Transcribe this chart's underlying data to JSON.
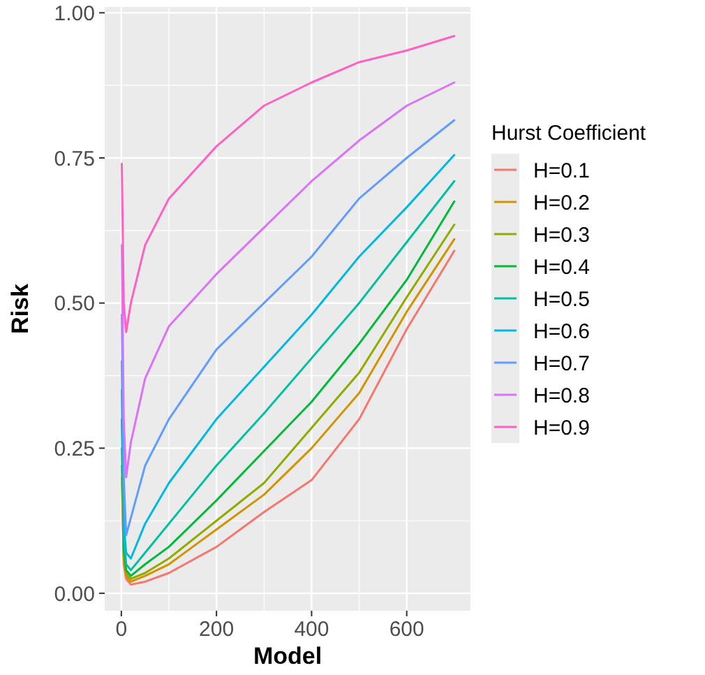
{
  "chart_data": {
    "type": "line",
    "xlabel": "Model",
    "ylabel": "Risk",
    "legend_title": "Hurst Coefficient",
    "legend": "right",
    "grid": true,
    "xlim": [
      -35,
      734
    ],
    "ylim": [
      -0.03,
      1.01
    ],
    "xticks": [
      0,
      200,
      400,
      600
    ],
    "yticks": [
      {
        "value": 0,
        "label": "0.00"
      },
      {
        "value": 0.25,
        "label": "0.25"
      },
      {
        "value": 0.5,
        "label": "0.50"
      },
      {
        "value": 0.75,
        "label": "0.75"
      },
      {
        "value": 1,
        "label": "1.00"
      }
    ],
    "x": [
      1,
      5,
      10,
      20,
      50,
      100,
      200,
      300,
      400,
      500,
      600,
      700
    ],
    "series": [
      {
        "name": "H=0.1",
        "color": "#f8766d",
        "values": [
          0.2,
          0.05,
          0.025,
          0.015,
          0.02,
          0.035,
          0.08,
          0.14,
          0.195,
          0.3,
          0.455,
          0.59
        ]
      },
      {
        "name": "H=0.2",
        "color": "#d39200",
        "values": [
          0.22,
          0.06,
          0.03,
          0.02,
          0.03,
          0.05,
          0.11,
          0.17,
          0.25,
          0.345,
          0.485,
          0.61
        ]
      },
      {
        "name": "H=0.3",
        "color": "#93aa00",
        "values": [
          0.25,
          0.07,
          0.035,
          0.025,
          0.035,
          0.06,
          0.125,
          0.19,
          0.285,
          0.38,
          0.51,
          0.635
        ]
      },
      {
        "name": "H=0.4",
        "color": "#00ba38",
        "values": [
          0.3,
          0.08,
          0.04,
          0.03,
          0.05,
          0.08,
          0.16,
          0.245,
          0.33,
          0.43,
          0.54,
          0.675
        ]
      },
      {
        "name": "H=0.5",
        "color": "#00c19f",
        "values": [
          0.35,
          0.1,
          0.05,
          0.04,
          0.07,
          0.12,
          0.22,
          0.31,
          0.405,
          0.5,
          0.605,
          0.71
        ]
      },
      {
        "name": "H=0.6",
        "color": "#00b9e3",
        "values": [
          0.4,
          0.12,
          0.07,
          0.06,
          0.12,
          0.19,
          0.3,
          0.39,
          0.48,
          0.58,
          0.665,
          0.755
        ]
      },
      {
        "name": "H=0.7",
        "color": "#619cff",
        "values": [
          0.48,
          0.2,
          0.1,
          0.13,
          0.22,
          0.3,
          0.42,
          0.5,
          0.58,
          0.68,
          0.75,
          0.815
        ]
      },
      {
        "name": "H=0.8",
        "color": "#db72fb",
        "values": [
          0.6,
          0.3,
          0.2,
          0.26,
          0.37,
          0.46,
          0.55,
          0.63,
          0.71,
          0.78,
          0.84,
          0.88
        ]
      },
      {
        "name": "H=0.9",
        "color": "#ff61c3",
        "values": [
          0.74,
          0.5,
          0.45,
          0.5,
          0.6,
          0.68,
          0.77,
          0.84,
          0.88,
          0.915,
          0.935,
          0.96
        ]
      }
    ]
  }
}
